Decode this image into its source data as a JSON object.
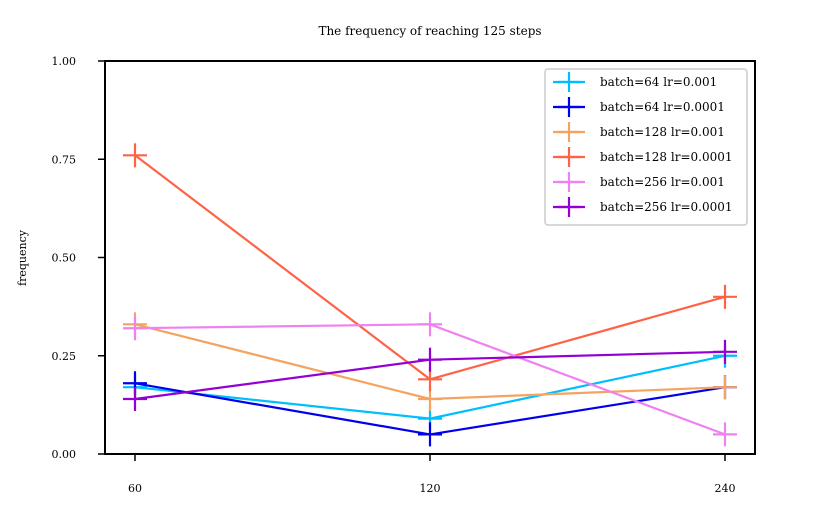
{
  "chart_data": {
    "type": "line",
    "title": "The frequency of reaching 125 steps",
    "xlabel": "",
    "ylabel": "frequency",
    "x": [
      60,
      120,
      240
    ],
    "x_tick_labels": [
      "60",
      "120",
      "240"
    ],
    "ylim": [
      0.0,
      1.0
    ],
    "y_ticks": [
      0.0,
      0.25,
      0.5,
      0.75,
      1.0
    ],
    "y_tick_labels": [
      "0.00",
      "0.25",
      "0.50",
      "0.75",
      "1.00"
    ],
    "grid": false,
    "legend_position": "top-right",
    "series": [
      {
        "name": "batch=64 lr=0.001",
        "color": "#00bfff",
        "values": [
          0.17,
          0.09,
          0.25
        ],
        "errors": [
          0.02,
          0.02,
          0.02
        ]
      },
      {
        "name": "batch=64 lr=0.0001",
        "color": "#0000ee",
        "values": [
          0.18,
          0.05,
          0.17
        ],
        "errors": [
          0.03,
          0.03,
          0.03
        ]
      },
      {
        "name": "batch=128 lr=0.001",
        "color": "#f4a460",
        "values": [
          0.33,
          0.14,
          0.17
        ],
        "errors": [
          0.03,
          0.02,
          0.02
        ]
      },
      {
        "name": "batch=128 lr=0.0001",
        "color": "#ff6347",
        "values": [
          0.76,
          0.19,
          0.4
        ],
        "errors": [
          0.03,
          0.03,
          0.03
        ]
      },
      {
        "name": "batch=256 lr=0.001",
        "color": "#ee82ee",
        "values": [
          0.32,
          0.33,
          0.05
        ],
        "errors": [
          0.03,
          0.03,
          0.02
        ]
      },
      {
        "name": "batch=256 lr=0.0001",
        "color": "#9400d3",
        "values": [
          0.14,
          0.24,
          0.26
        ],
        "errors": [
          0.03,
          0.03,
          0.03
        ]
      }
    ]
  }
}
